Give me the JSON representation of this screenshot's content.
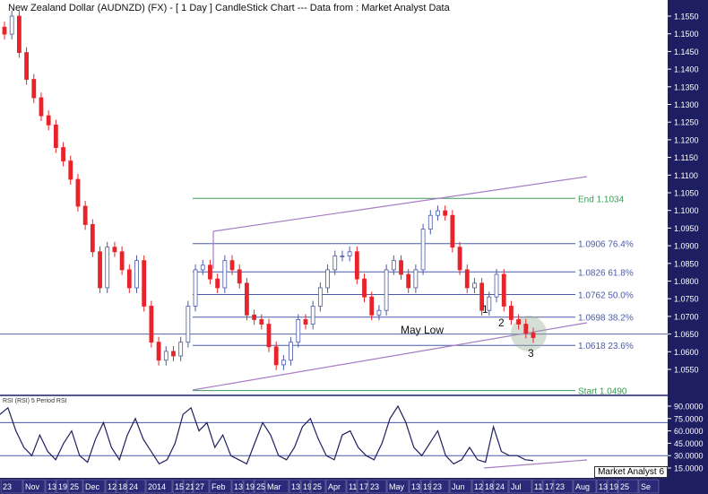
{
  "title": "New Zealand Dollar (AUDNZD) (FX) -  [ 1 Day ] CandleStick Chart --- Data from : Market Analyst Data",
  "rsi_label": "RSI (RSI) 5 Period RSI",
  "brand": "Market Analyst 6",
  "colors": {
    "up": "#4a5aa8",
    "down": "#e8232a",
    "axis_bg": "#1e1e62",
    "fib": "#4a5aa8",
    "fib_ends": "#3a9a55",
    "channel": "#a77cc4"
  },
  "annotations": {
    "may_low": "May Low",
    "wave1": "1",
    "wave2": "2",
    "wave3": "3"
  },
  "chart_data": {
    "type": "candlestick",
    "price_axis": [
      "1.1550",
      "1.1500",
      "1.1450",
      "1.1400",
      "1.1350",
      "1.1300",
      "1.1250",
      "1.1200",
      "1.1150",
      "1.1100",
      "1.1050",
      "1.1000",
      "1.0950",
      "1.0900",
      "1.0850",
      "1.0800",
      "1.0750",
      "1.0700",
      "1.0650",
      "1.0600",
      "1.0550"
    ],
    "rsi_axis": [
      "90.0000",
      "75.0000",
      "60.0000",
      "45.0000",
      "30.0000",
      "15.0000"
    ],
    "x_axis": [
      "23",
      "Nov",
      "13",
      "19",
      "25",
      "Dec",
      "12",
      "18",
      "24",
      "2014",
      "15",
      "21",
      "27",
      "Feb",
      "13",
      "19",
      "25",
      "Mar",
      "13",
      "19",
      "25",
      "Apr",
      "11",
      "17",
      "23",
      "May",
      "13",
      "19",
      "23",
      "Jun",
      "12",
      "18",
      "24",
      "Jul",
      "11",
      "17",
      "23",
      "Aug",
      "13",
      "19",
      "25",
      "Se"
    ],
    "closes": [
      1.1499,
      1.155,
      1.1447,
      1.1371,
      1.1319,
      1.1268,
      1.1242,
      1.1178,
      1.114,
      1.1088,
      1.1012,
      1.096,
      1.0883,
      1.0781,
      1.0896,
      1.0883,
      1.0832,
      1.0781,
      1.0858,
      1.0729,
      1.0627,
      1.0576,
      1.0601,
      1.0588,
      1.0627,
      1.0729,
      1.0832,
      1.0845,
      1.0806,
      1.0781,
      1.0858,
      1.0832,
      1.0794,
      1.0704,
      1.0691,
      1.0678,
      1.0614,
      1.0563,
      1.0576,
      1.0627,
      1.0691,
      1.0678,
      1.0729,
      1.0781,
      1.0832,
      1.0871,
      1.0871,
      1.0883,
      1.0806,
      1.0755,
      1.0704,
      1.0717,
      1.0832,
      1.0858,
      1.0819,
      1.0781,
      1.0832,
      1.0947,
      1.0986,
      1.0999,
      1.0986,
      1.0896,
      1.0832,
      1.0781,
      1.0794,
      1.0717,
      1.0755,
      1.0819,
      1.0729,
      1.0691,
      1.0678,
      1.0653,
      1.064
    ],
    "rsi": [
      80,
      88,
      60,
      40,
      30,
      55,
      35,
      25,
      45,
      60,
      30,
      22,
      50,
      70,
      40,
      25,
      55,
      75,
      50,
      35,
      20,
      25,
      45,
      80,
      88,
      60,
      70,
      40,
      55,
      30,
      25,
      20,
      45,
      70,
      55,
      30,
      25,
      40,
      65,
      75,
      50,
      30,
      25,
      55,
      60,
      40,
      30,
      25,
      45,
      75,
      90,
      70,
      40,
      30,
      45,
      60,
      30,
      20,
      25,
      40,
      25,
      22,
      65,
      35,
      30,
      30,
      25,
      24
    ],
    "fib_levels": [
      {
        "label": "End 1.1034",
        "value": 1.1034
      },
      {
        "label": "1.0906 76.4%",
        "value": 1.0906
      },
      {
        "label": "1.0826 61.8%",
        "value": 1.0826
      },
      {
        "label": "1.0762 50.0%",
        "value": 1.0762
      },
      {
        "label": "1.0698 38.2%",
        "value": 1.0698
      },
      {
        "label": "1.0618 23.6%",
        "value": 1.0618
      },
      {
        "label": "Start 1.0490",
        "value": 1.049
      }
    ],
    "support_line": 1.065,
    "rsi_levels": [
      70,
      30
    ],
    "ylim": [
      1.049,
      1.158
    ]
  }
}
